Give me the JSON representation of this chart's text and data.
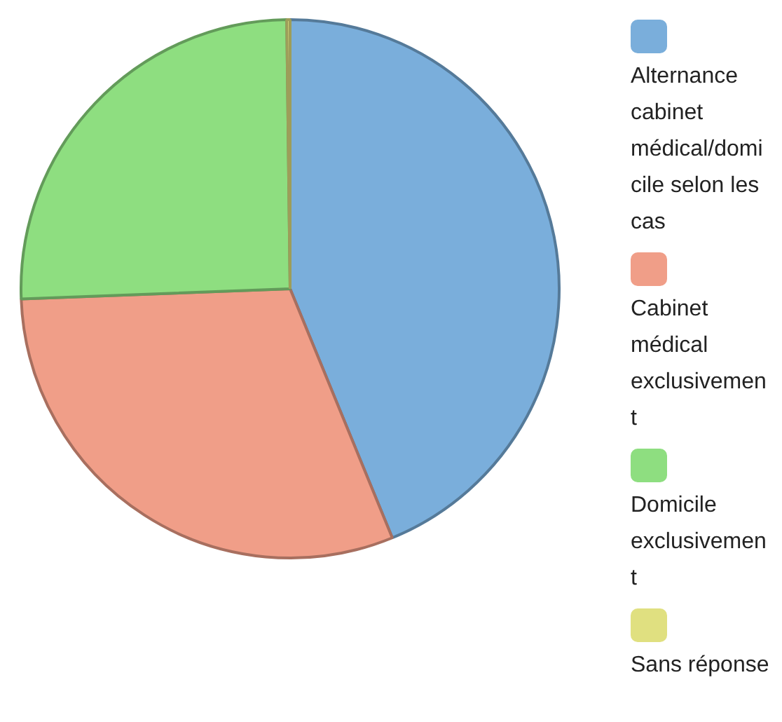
{
  "chart_data": {
    "type": "pie",
    "categories": [
      "Alternance cabinet médical/domicile selon les cas",
      "Cabinet médical exclusivement",
      "Domicile exclusivement",
      "Sans réponse"
    ],
    "values": [
      43.8,
      30.6,
      25.4,
      0.2
    ],
    "colors": [
      "#7aaedb",
      "#f09e88",
      "#8ede80",
      "#e0e080"
    ],
    "legend": "right"
  }
}
